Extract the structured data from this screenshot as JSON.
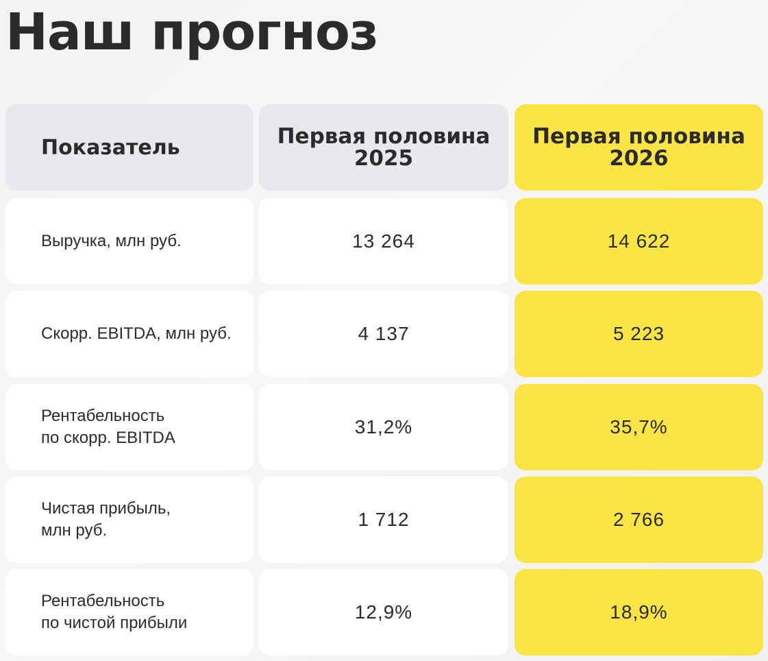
{
  "title": "Наш прогноз",
  "header": {
    "indicator": "Показатель",
    "col1_line1": "Первая половина",
    "col1_line2": "2025",
    "col2_line1": "Первая половина",
    "col2_line2": "2026"
  },
  "rows": [
    {
      "label_line1": "Выручка, млн руб.",
      "label_line2": "",
      "v2025": "13 264",
      "v2026": "14 622"
    },
    {
      "label_line1": "Скорр. EBITDA, млн руб.",
      "label_line2": "",
      "v2025": "4 137",
      "v2026": "5 223"
    },
    {
      "label_line1": "Рентабельность",
      "label_line2": "по скорр. EBITDA",
      "v2025": "31,2%",
      "v2026": "35,7%"
    },
    {
      "label_line1": "Чистая прибыль,",
      "label_line2": "млн руб.",
      "v2025": "1 712",
      "v2026": "2 766"
    },
    {
      "label_line1": "Рентабельность",
      "label_line2": "по чистой прибыли",
      "v2025": "12,9%",
      "v2026": "18,9%"
    }
  ],
  "colors": {
    "accent_yellow": "#fbe446",
    "header_gray": "#e9e8ee",
    "text_dark": "#2b2b2b"
  }
}
